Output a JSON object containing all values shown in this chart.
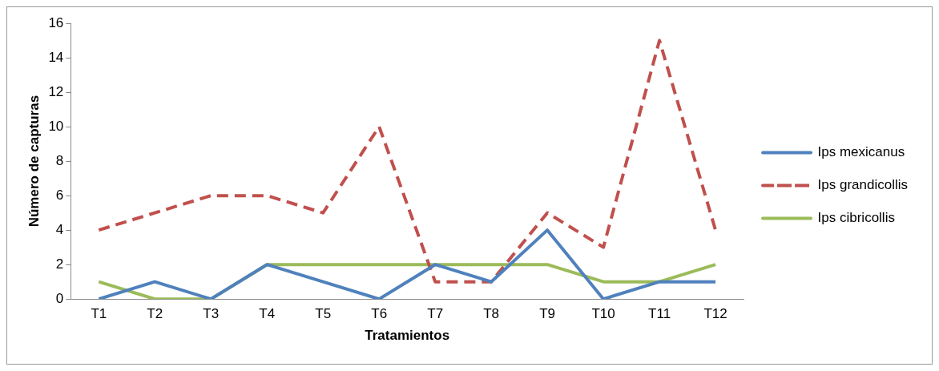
{
  "chart_data": {
    "type": "line",
    "xlabel": "Tratamientos",
    "ylabel": "Número de capturas",
    "categories": [
      "T1",
      "T2",
      "T3",
      "T4",
      "T5",
      "T6",
      "T7",
      "T8",
      "T9",
      "T10",
      "T11",
      "T12"
    ],
    "series": [
      {
        "name": "Ips mexicanus",
        "color": "#4f81bd",
        "line_style": "solid",
        "values": [
          0,
          1,
          0,
          2,
          1,
          0,
          2,
          1,
          4,
          0,
          1,
          1
        ]
      },
      {
        "name": "Ips grandicollis",
        "color": "#c0504d",
        "line_style": "dashed",
        "values": [
          4,
          5,
          6,
          6,
          5,
          10,
          1,
          1,
          5,
          3,
          15,
          4
        ]
      },
      {
        "name": "Ips cibricollis",
        "color": "#9bbb59",
        "line_style": "solid",
        "values": [
          1,
          0,
          0,
          2,
          2,
          2,
          2,
          2,
          2,
          1,
          1,
          2
        ]
      }
    ],
    "ylim": [
      0,
      16
    ],
    "yticks": [
      0,
      2,
      4,
      6,
      8,
      10,
      12,
      14,
      16
    ],
    "grid": false,
    "legend": "right",
    "marker": "none"
  }
}
